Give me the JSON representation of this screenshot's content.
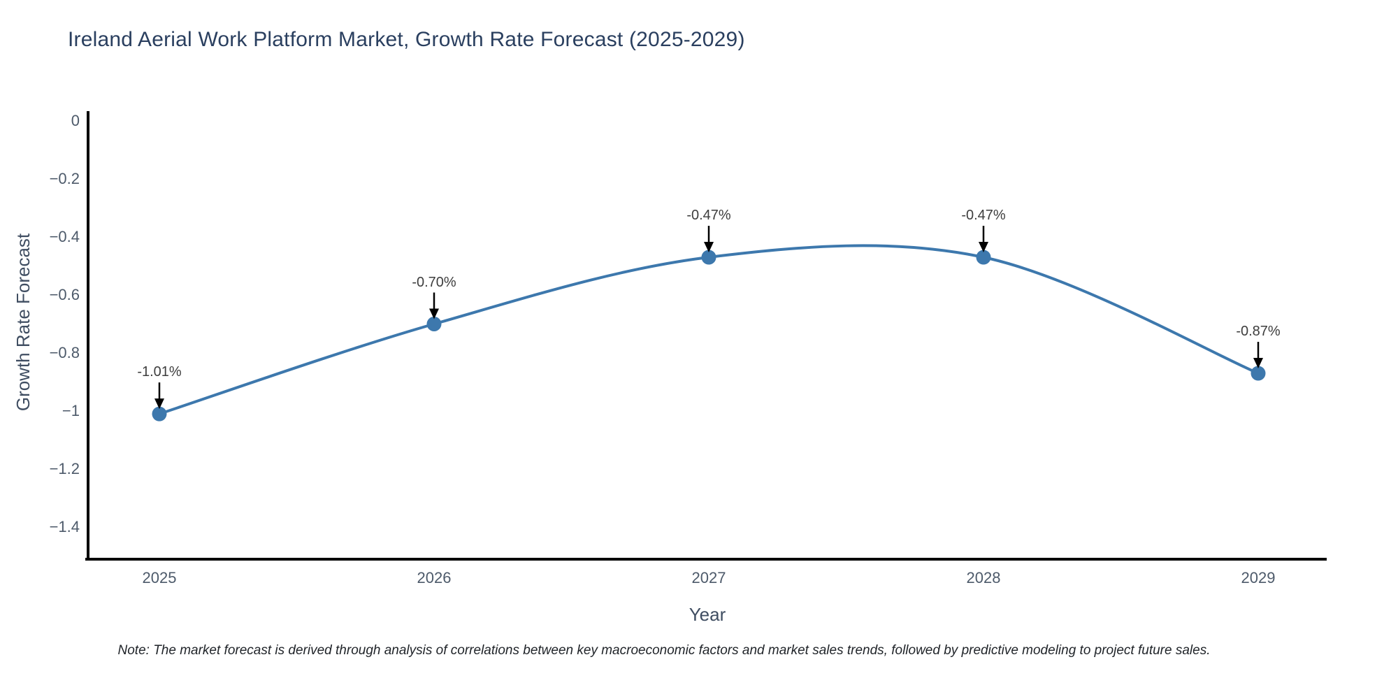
{
  "chart": {
    "title": "Ireland Aerial Work Platform Market, Growth Rate Forecast (2025-2029)",
    "xlabel": "Year",
    "ylabel": "Growth Rate Forecast",
    "note": "Note: The market forecast is derived through analysis of correlations between key macroeconomic factors and market sales trends, followed by predictive modeling to project future sales."
  },
  "colors": {
    "line": "#3d78ad",
    "marker": "#3d78ad",
    "axis_line": "#000000",
    "arrow": "#000000",
    "title_text": "#2a3f5f",
    "tick_text": "#4d5a6a",
    "axis_title_text": "#3f4d61",
    "annotation_text": "#3d3d3d",
    "background": "#ffffff"
  },
  "chart_data": {
    "type": "line",
    "line_shape": "spline",
    "markers": true,
    "title": "Ireland Aerial Work Platform Market, Growth Rate Forecast (2025-2029)",
    "xlabel": "Year",
    "ylabel": "Growth Rate Forecast",
    "x": [
      2025,
      2026,
      2027,
      2028,
      2029
    ],
    "series": [
      {
        "name": "Growth Rate Forecast",
        "values": [
          -1.01,
          -0.7,
          -0.47,
          -0.47,
          -0.87
        ]
      }
    ],
    "point_labels": [
      "-1.01%",
      "-0.70%",
      "-0.47%",
      "-0.47%",
      "-0.87%"
    ],
    "yticks": {
      "values": [
        0,
        -0.2,
        -0.4,
        -0.6,
        -0.8,
        -1,
        -1.2,
        -1.4
      ],
      "labels": [
        "0",
        "−0.2",
        "−0.4",
        "−0.6",
        "−0.8",
        "−1",
        "−1.2",
        "−1.4"
      ]
    },
    "ylim": [
      -1.52,
      0.03
    ],
    "grid": false,
    "legend": "none"
  }
}
